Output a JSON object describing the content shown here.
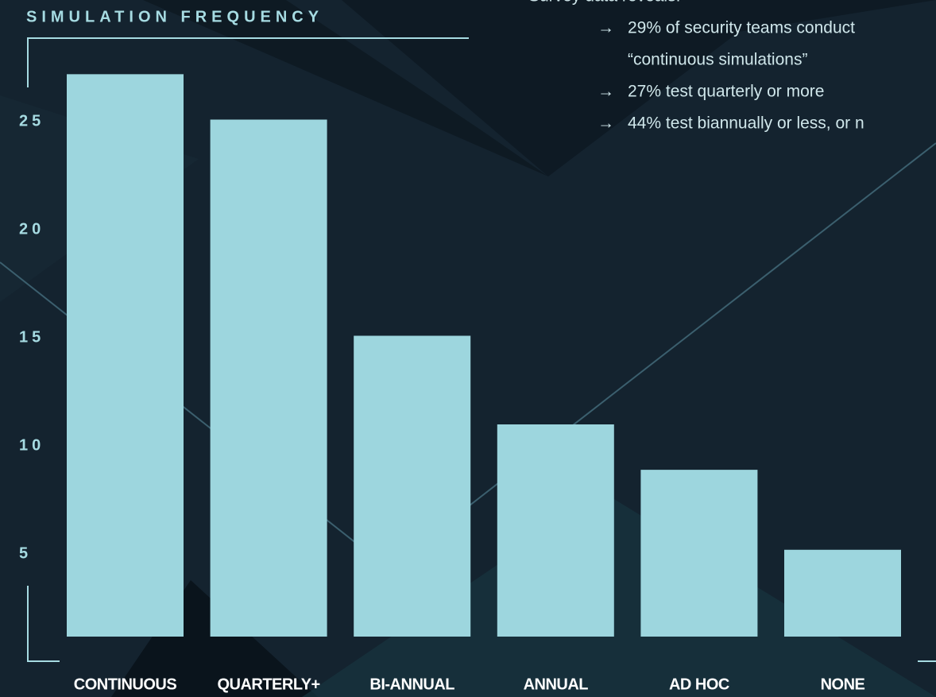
{
  "chart_data": {
    "type": "bar",
    "title": "SIMULATION FREQUENCY",
    "categories": [
      "CONTINUOUS",
      "QUARTERLY+",
      "BI-ANNUAL",
      "ANNUAL",
      "AD HOC",
      "NONE"
    ],
    "values": [
      27.2,
      25.1,
      15.1,
      11,
      8.9,
      5.2
    ],
    "color": "#9dd6de",
    "ylim": [
      1,
      29
    ],
    "yticks": [
      5,
      10,
      15,
      20,
      25
    ],
    "grid": false,
    "notes": {
      "heading": "Survey data reveals:",
      "items": [
        {
          "marker": "→",
          "lines": [
            "29% of security teams conduct",
            "“continuous simulations”"
          ]
        },
        {
          "marker": "→",
          "lines": [
            "27% test quarterly or more"
          ]
        },
        {
          "marker": "→",
          "lines": [
            "44% test biannually or less, or n"
          ]
        }
      ]
    }
  }
}
